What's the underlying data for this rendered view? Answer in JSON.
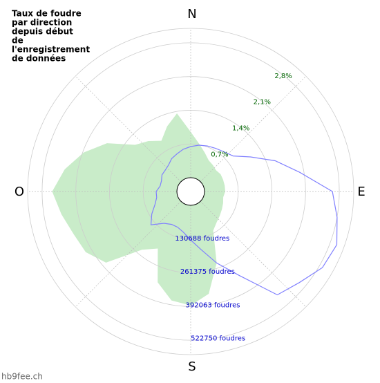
{
  "chart_data": {
    "type": "polar",
    "title_lines": [
      "Taux de foudre",
      "par direction",
      "depuis début",
      "de",
      "l'enregistrement",
      "de données"
    ],
    "directions": [
      "N",
      "E",
      "S",
      "O"
    ],
    "watermark": "hb9fee.ch",
    "x": [
      0,
      10,
      20,
      30,
      40,
      50,
      60,
      70,
      80,
      90,
      100,
      110,
      120,
      130,
      140,
      150,
      160,
      170,
      180,
      190,
      200,
      210,
      220,
      230,
      240,
      250,
      260,
      270,
      280,
      290,
      300,
      310,
      320,
      330,
      340,
      350
    ],
    "series": [
      {
        "kind": "area",
        "color": "#c9ecc9",
        "values": [
          0.95,
          0.72,
          0.57,
          0.46,
          0.43,
          0.4,
          0.43,
          0.43,
          0.43,
          0.43,
          0.4,
          0.43,
          0.46,
          0.5,
          0.55,
          0.65,
          1.29,
          1.87,
          2.08,
          2.01,
          1.72,
          1.08,
          1.29,
          2.01,
          2.23,
          2.3,
          2.44,
          2.59,
          2.37,
          2.08,
          1.72,
          1.22,
          1.08,
          0.93,
          1.15,
          1.36
        ]
      },
      {
        "kind": "line",
        "color": "#8080ff",
        "axis": "y2",
        "values": [
          120600,
          128700,
          134400,
          139500,
          147500,
          160800,
          214500,
          294900,
          375400,
          496000,
          522800,
          549600,
          536200,
          496000,
          469200,
          321700,
          241300,
          174300,
          134400,
          107200,
          93800,
          93800,
          107200,
          147500,
          120600,
          93800,
          80400,
          80400,
          67000,
          67000,
          75100,
          75100,
          80400,
          93800,
          101900,
          112600
        ]
      }
    ],
    "ylim": [
      0,
      3.1
    ],
    "yticks": [
      {
        "value": 0.7,
        "label": "0,7%"
      },
      {
        "value": 1.4,
        "label": "1,4%"
      },
      {
        "value": 2.1,
        "label": "2,1%"
      },
      {
        "value": 2.8,
        "label": "2,8%"
      }
    ],
    "ytick_color": "#006400",
    "y2lim": [
      0,
      578750
    ],
    "y2ticks": [
      {
        "value": 130688,
        "label": "130688 foudres"
      },
      {
        "value": 261375,
        "label": "261375 foudres"
      },
      {
        "value": 392063,
        "label": "392063 foudres"
      },
      {
        "value": 522750,
        "label": "522750 foudres"
      }
    ],
    "y2tick_color": "#0000cc",
    "grid": true
  }
}
